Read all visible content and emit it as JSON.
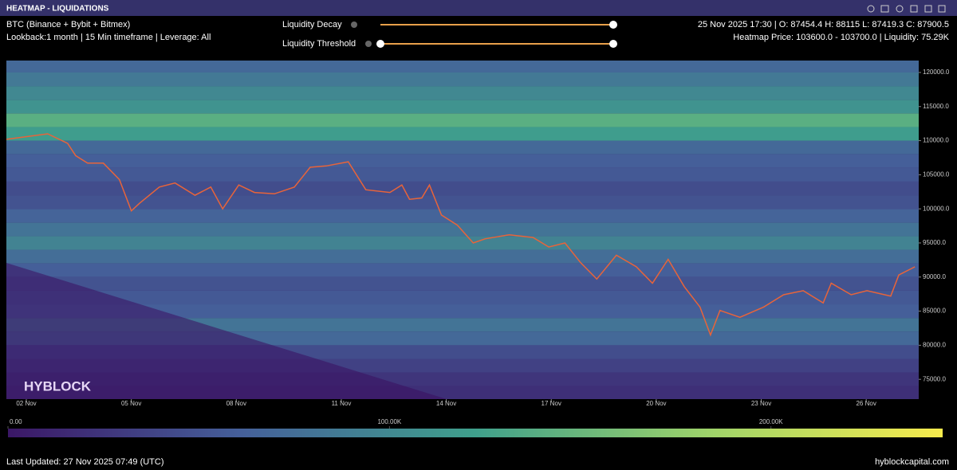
{
  "header": {
    "title": "HEATMAP - LIQUIDATIONS",
    "market": "BTC (Binance + Bybit + Bitmex)",
    "settings": "Lookback:1 month | 15 Min timeframe | Leverage: All",
    "controls": [
      "Liquidity Decay",
      "Liquidity Threshold"
    ],
    "ohlc": "25 Nov 2025 17:30 | O: 87454.4 H: 88115 L: 87419.3 C: 87900.5",
    "hover": "Heatmap Price: 103600.0 - 103700.0 | Liquidity: 75.29K"
  },
  "brand": "HYBLOCK",
  "footer": {
    "updated": "Last Updated: 27 Nov 2025 07:49 (UTC)",
    "site": "hyblockcapital.com"
  },
  "chart_data": {
    "type": "heatmap",
    "xlim": [
      1.43,
      27.5
    ],
    "ylim": [
      72100,
      121750
    ],
    "xticks": [
      {
        "value": 2,
        "label": "02 Nov"
      },
      {
        "value": 5,
        "label": "05 Nov"
      },
      {
        "value": 8,
        "label": "08 Nov"
      },
      {
        "value": 11,
        "label": "11 Nov"
      },
      {
        "value": 14,
        "label": "14 Nov"
      },
      {
        "value": 17,
        "label": "17 Nov"
      },
      {
        "value": 20,
        "label": "20 Nov"
      },
      {
        "value": 23,
        "label": "23 Nov"
      },
      {
        "value": 26,
        "label": "26 Nov"
      }
    ],
    "yticks": [
      {
        "value": 75000,
        "label": "75000.0"
      },
      {
        "value": 80000,
        "label": "80000.0"
      },
      {
        "value": 85000,
        "label": "85000.0"
      },
      {
        "value": 90000,
        "label": "90000.0"
      },
      {
        "value": 95000,
        "label": "95000.0"
      },
      {
        "value": 100000,
        "label": "100000.0"
      },
      {
        "value": 105000,
        "label": "105000.0"
      },
      {
        "value": 110000,
        "label": "110000.0"
      },
      {
        "value": 115000,
        "label": "115000.0"
      },
      {
        "value": 120000,
        "label": "120000.0"
      }
    ],
    "levels": [
      73000,
      75000,
      77000,
      79000,
      81000,
      83000,
      85000,
      87000,
      89000,
      91000,
      93000,
      95000,
      97000,
      99000,
      101000,
      103000,
      105000,
      107000,
      109000,
      111000,
      113000,
      115000,
      117000,
      119000,
      121000
    ],
    "liquidity": [
      20000,
      25000,
      35000,
      45000,
      70000,
      80000,
      60000,
      55000,
      50000,
      60000,
      75000,
      95000,
      80000,
      65000,
      50000,
      45000,
      55000,
      60000,
      70000,
      120000,
      140000,
      110000,
      100000,
      85000,
      70000
    ],
    "clim": [
      0,
      245000
    ],
    "colorscale": [
      "#3b1766",
      "#45609a",
      "#3fa08c",
      "#9ed36a",
      "#f7eb4d"
    ],
    "cticks": [
      {
        "value": 0,
        "label": "0.00"
      },
      {
        "value": 100000,
        "label": "100.00K"
      },
      {
        "value": 200000,
        "label": "200.00K"
      }
    ],
    "price": {
      "color": "#e8643a",
      "x": [
        1.43,
        2.61,
        3.18,
        3.41,
        3.75,
        4.2,
        4.66,
        5.0,
        5.23,
        5.8,
        6.25,
        6.82,
        7.27,
        7.61,
        8.07,
        8.52,
        9.09,
        9.66,
        10.11,
        10.57,
        11.2,
        11.7,
        12.39,
        12.73,
        12.95,
        13.3,
        13.52,
        13.86,
        14.32,
        14.77,
        15.11,
        15.8,
        16.48,
        16.93,
        17.39,
        17.84,
        18.3,
        18.86,
        19.43,
        19.89,
        20.34,
        20.8,
        21.25,
        21.55,
        21.82,
        22.39,
        23.07,
        23.64,
        24.2,
        24.77,
        25.0,
        25.57,
        26.02,
        26.7,
        26.93,
        27.39
      ],
      "values": [
        110200,
        111000,
        109600,
        107800,
        106700,
        106700,
        104300,
        99700,
        100800,
        103200,
        103800,
        102000,
        103200,
        100000,
        103500,
        102400,
        102200,
        103200,
        106100,
        106300,
        106900,
        102800,
        102400,
        103500,
        101400,
        101600,
        103500,
        99100,
        97600,
        95000,
        95600,
        96200,
        95800,
        94400,
        95000,
        92100,
        89700,
        93200,
        91500,
        89100,
        92600,
        88600,
        85600,
        81500,
        85100,
        84100,
        85600,
        87400,
        88000,
        86200,
        89100,
        87400,
        88000,
        87200,
        90300,
        91500
      ]
    }
  }
}
